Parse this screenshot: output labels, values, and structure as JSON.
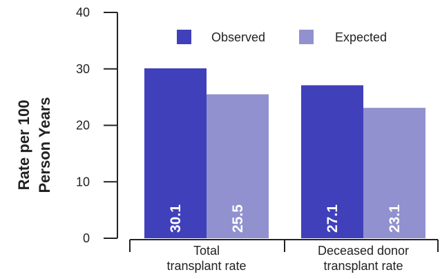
{
  "chart_data": {
    "type": "bar",
    "title": "",
    "ylabel_lines": [
      "Rate per 100",
      "Person Years"
    ],
    "ylim": [
      0,
      40
    ],
    "yticks": [
      0,
      10,
      20,
      30,
      40
    ],
    "categories": [
      [
        "Total",
        "transplant rate"
      ],
      [
        "Deceased donor",
        "transplant rate"
      ]
    ],
    "series": [
      {
        "name": "Observed",
        "color": "#4040bb",
        "values": [
          30.1,
          27.1
        ]
      },
      {
        "name": "Expected",
        "color": "#9191cf",
        "values": [
          25.5,
          23.1
        ]
      }
    ],
    "legend": {
      "placement": "top-center"
    },
    "grid": false
  }
}
